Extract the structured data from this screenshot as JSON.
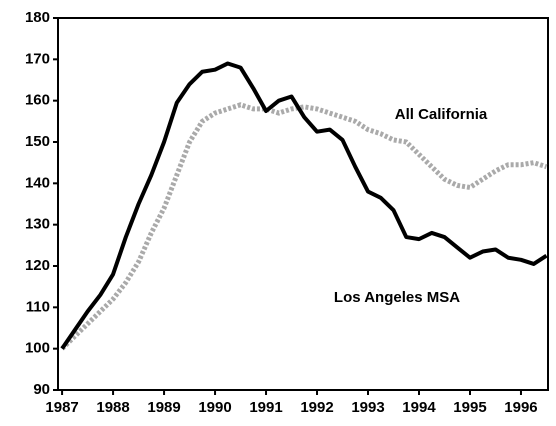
{
  "chart_data": {
    "type": "line",
    "x": [
      1987,
      1987.25,
      1987.5,
      1987.75,
      1988,
      1988.25,
      1988.5,
      1988.75,
      1989,
      1989.25,
      1989.5,
      1989.75,
      1990,
      1990.25,
      1990.5,
      1990.75,
      1991,
      1991.25,
      1991.5,
      1991.75,
      1992,
      1992.25,
      1992.5,
      1992.75,
      1993,
      1993.25,
      1993.5,
      1993.75,
      1994,
      1994.25,
      1994.5,
      1994.75,
      1995,
      1995.25,
      1995.5,
      1995.75,
      1996,
      1996.25,
      1996.5
    ],
    "series": [
      {
        "name": "All California",
        "color": "#aaaaaa",
        "dashed": true,
        "values": [
          100,
          103,
          106,
          109,
          112,
          116,
          121,
          128,
          134,
          142,
          150,
          155,
          157,
          158,
          159,
          158,
          158,
          157,
          158,
          158.5,
          158,
          157,
          156,
          155,
          153,
          152,
          150.5,
          150,
          147,
          144,
          141,
          139.5,
          139,
          141,
          143,
          144.5,
          144.5,
          145,
          144
        ]
      },
      {
        "name": "Los Angeles MSA",
        "color": "#000000",
        "dashed": false,
        "values": [
          100,
          104.5,
          109,
          113,
          118,
          127,
          135,
          142,
          150,
          159.5,
          164,
          167,
          167.5,
          169,
          168,
          163,
          157.5,
          160,
          161,
          156,
          152.5,
          153,
          150.5,
          144,
          138,
          136.5,
          133.5,
          127,
          126.5,
          128,
          127,
          124.5,
          122,
          123.5,
          124,
          122,
          121.5,
          120.5,
          122.5
        ]
      }
    ],
    "xlim": [
      1986.92,
      1996.53
    ],
    "xticks": [
      1987,
      1988,
      1989,
      1990,
      1991,
      1992,
      1993,
      1994,
      1995,
      1996
    ],
    "ylim": [
      90,
      180
    ],
    "yticks": [
      90,
      100,
      110,
      120,
      130,
      140,
      150,
      160,
      170,
      180
    ]
  }
}
